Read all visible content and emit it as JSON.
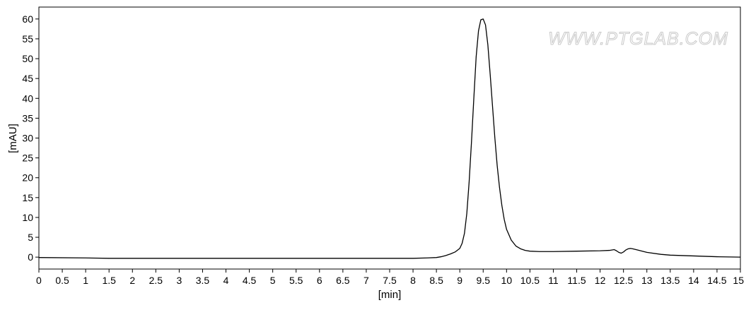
{
  "chart_data": {
    "type": "line",
    "xlabel": "[min]",
    "ylabel": "[mAU]",
    "watermark": "WWW.PTGLAB.COM",
    "xlim": [
      0,
      15
    ],
    "ylim": [
      -3,
      63
    ],
    "x_ticks": [
      0,
      0.5,
      1,
      1.5,
      2,
      2.5,
      3,
      3.5,
      4,
      4.5,
      5,
      5.5,
      6,
      6.5,
      7,
      7.5,
      8,
      8.5,
      9,
      9.5,
      10,
      10.5,
      11,
      11.5,
      12,
      12.5,
      13,
      13.5,
      14,
      14.5,
      15
    ],
    "x_tick_labels": [
      "0",
      "0.5",
      "1",
      "1.5",
      "2",
      "2.5",
      "3",
      "3.5",
      "4",
      "4.5",
      "5",
      "5.5",
      "6",
      "6.5",
      "7",
      "7.5",
      "8",
      "8.5",
      "9",
      "9.5",
      "10",
      "10.5",
      "11",
      "11.5",
      "12",
      "12.5",
      "13",
      "13.5",
      "14",
      "14.5",
      "15"
    ],
    "y_ticks": [
      0,
      5,
      10,
      15,
      20,
      25,
      30,
      35,
      40,
      45,
      50,
      55,
      60
    ],
    "y_tick_labels": [
      "0",
      "5",
      "10",
      "15",
      "20",
      "25",
      "30",
      "35",
      "40",
      "45",
      "50",
      "55",
      "60"
    ],
    "grid": false,
    "colors": {
      "line": "#000000",
      "axis": "#000000",
      "background": "#ffffff"
    },
    "series": [
      {
        "x": [
          0,
          1.0,
          1.5,
          2.0,
          3.0,
          4.0,
          5.0,
          6.0,
          7.0,
          7.5,
          8.0,
          8.3,
          8.5,
          8.6,
          8.7,
          8.8,
          8.9,
          9.0,
          9.05,
          9.1,
          9.15,
          9.2,
          9.25,
          9.3,
          9.35,
          9.4,
          9.45,
          9.5,
          9.55,
          9.6,
          9.65,
          9.7,
          9.75,
          9.8,
          9.85,
          9.9,
          9.95,
          10.0,
          10.1,
          10.2,
          10.3,
          10.4,
          10.5,
          10.7,
          11.0,
          11.5,
          12.0,
          12.2,
          12.3,
          12.35,
          12.4,
          12.45,
          12.5,
          12.55,
          12.6,
          12.65,
          12.7,
          12.8,
          13.0,
          13.3,
          13.5,
          14.0,
          14.5,
          15.0
        ],
        "y": [
          -0.1,
          -0.2,
          -0.3,
          -0.3,
          -0.3,
          -0.3,
          -0.3,
          -0.3,
          -0.3,
          -0.3,
          -0.3,
          -0.2,
          -0.1,
          0.1,
          0.4,
          0.8,
          1.3,
          2.2,
          3.5,
          6.0,
          11.0,
          19.0,
          29.0,
          40.0,
          50.5,
          57.0,
          59.8,
          60.0,
          58.5,
          53.5,
          46.0,
          38.0,
          30.0,
          23.0,
          17.5,
          13.0,
          9.5,
          7.0,
          4.3,
          2.8,
          2.1,
          1.7,
          1.5,
          1.4,
          1.4,
          1.5,
          1.6,
          1.7,
          1.9,
          1.6,
          1.2,
          1.0,
          1.3,
          1.8,
          2.1,
          2.2,
          2.1,
          1.8,
          1.2,
          0.7,
          0.5,
          0.3,
          0.1,
          0.0
        ]
      }
    ]
  }
}
